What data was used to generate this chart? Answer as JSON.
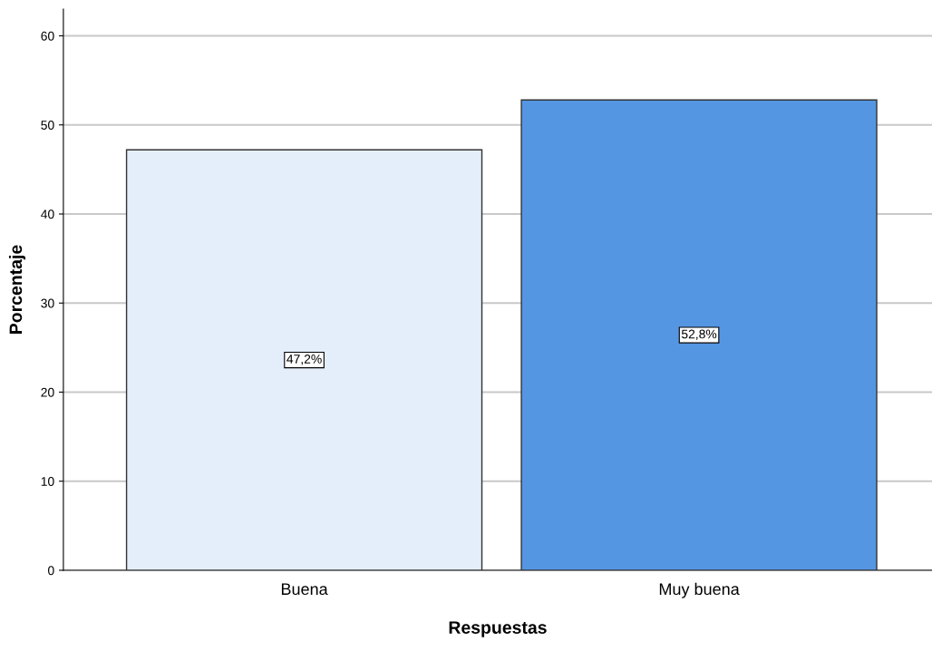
{
  "chart_data": {
    "type": "bar",
    "xlabel": "Respuestas",
    "ylabel": "Porcentaje",
    "categories": [
      "Buena",
      "Muy buena"
    ],
    "values": [
      47.2,
      52.8
    ],
    "colors": [
      "#e3eefa",
      "#5596e3"
    ],
    "value_labels": [
      "47,2%",
      "52,8%"
    ],
    "ylim": [
      0,
      63
    ],
    "yticks": [
      0,
      10,
      20,
      30,
      40,
      50,
      60
    ],
    "grid": "y",
    "legend": false
  }
}
